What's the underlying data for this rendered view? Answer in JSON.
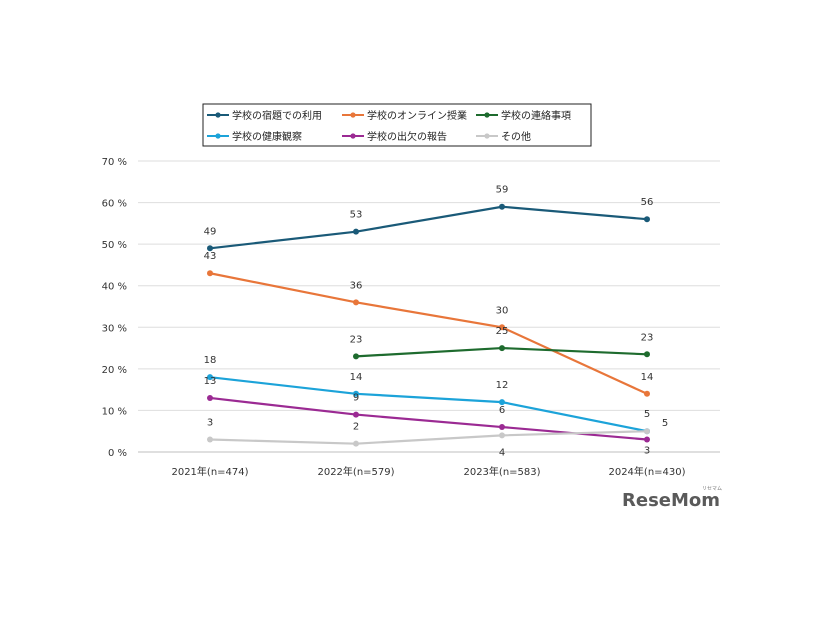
{
  "chart_data": {
    "type": "line",
    "title": "",
    "xlabel": "",
    "ylabel": "",
    "ylim": [
      0,
      70
    ],
    "y_ticks": [
      0,
      10,
      20,
      30,
      40,
      50,
      60,
      70
    ],
    "y_tick_suffix": " %",
    "grid": true,
    "legend_position": "top",
    "categories": [
      "2021年(n=474)",
      "2022年(n=579)",
      "2023年(n=583)",
      "2024年(n=430)"
    ],
    "series": [
      {
        "name": "学校の宿題での利用",
        "color": "#1a5a78",
        "values": [
          49,
          53,
          59,
          56
        ],
        "labels": [
          "49",
          "53",
          "59",
          "56"
        ]
      },
      {
        "name": "学校のオンライン授業",
        "color": "#e8763a",
        "values": [
          43,
          36,
          30,
          14
        ],
        "labels": [
          "43",
          "36",
          "30",
          "14"
        ]
      },
      {
        "name": "学校の連絡事項",
        "color": "#1e6b2e",
        "values": [
          null,
          23,
          25,
          23.5
        ],
        "labels": [
          null,
          "23",
          "25",
          "23"
        ]
      },
      {
        "name": "学校の健康観察",
        "color": "#1ca3d9",
        "values": [
          18,
          14,
          12,
          5
        ],
        "labels": [
          "18",
          "14",
          "12",
          "5"
        ]
      },
      {
        "name": "学校の出欠の報告",
        "color": "#9b2a93",
        "values": [
          13,
          9,
          6,
          3
        ],
        "labels": [
          "13",
          "9",
          "6",
          "3"
        ]
      },
      {
        "name": "その他",
        "color": "#c8c8c8",
        "values": [
          3,
          2,
          4,
          5
        ],
        "labels": [
          "3",
          "2",
          "4",
          "5"
        ]
      }
    ]
  },
  "watermark": {
    "text": "ReseMom",
    "small_text": "リセマム"
  }
}
